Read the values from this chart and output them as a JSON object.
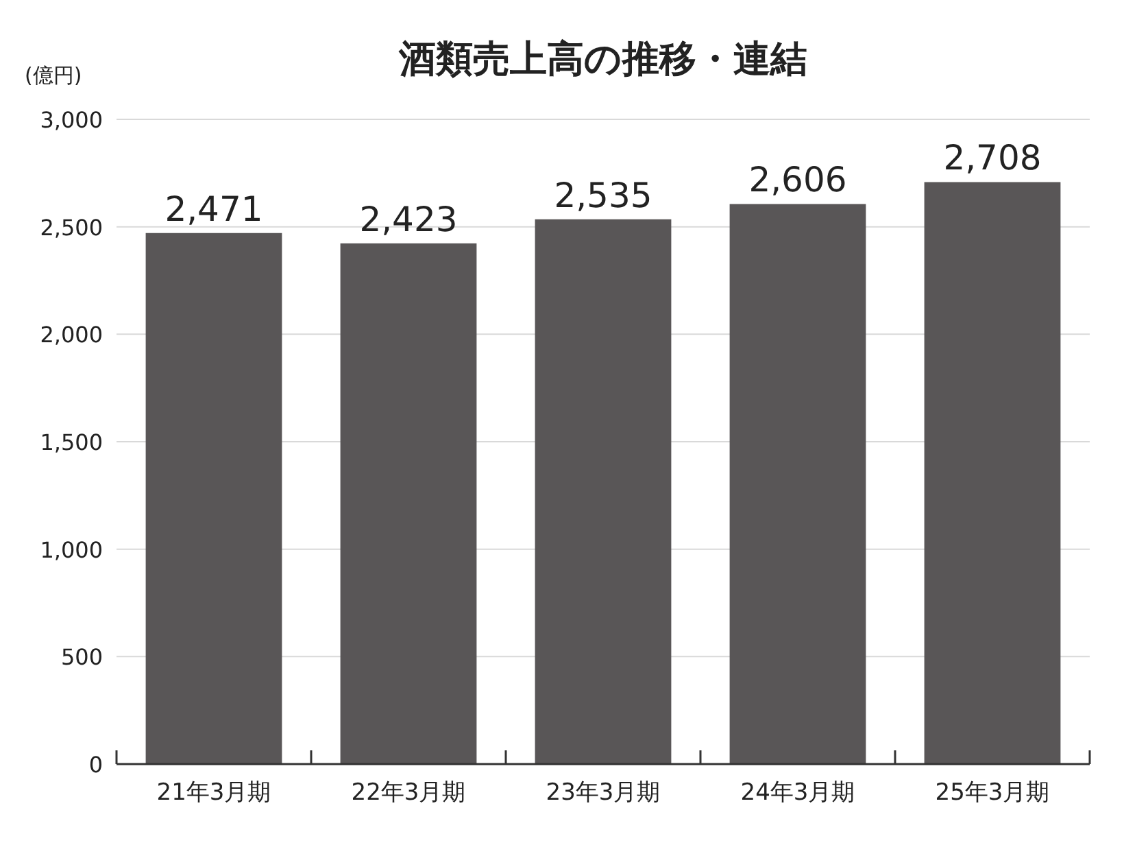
{
  "chart_data": {
    "type": "bar",
    "title": "酒類売上高の推移・連結",
    "ylabel": "(億円)",
    "categories": [
      "21年3月期",
      "22年3月期",
      "23年3月期",
      "24年3月期",
      "25年3月期"
    ],
    "values": [
      2471,
      2423,
      2535,
      2606,
      2708
    ],
    "value_labels": [
      "2,471",
      "2,423",
      "2,535",
      "2,606",
      "2,708"
    ],
    "color": "#595657",
    "ylim": [
      0,
      3000
    ],
    "yticks": [
      {
        "value": 0,
        "label": "0"
      },
      {
        "value": 500,
        "label": "500"
      },
      {
        "value": 1000,
        "label": "1,000"
      },
      {
        "value": 1500,
        "label": "1,500"
      },
      {
        "value": 2000,
        "label": "2,000"
      },
      {
        "value": 2500,
        "label": "2,500"
      },
      {
        "value": 3000,
        "label": "3,000"
      }
    ],
    "grid": "y"
  }
}
